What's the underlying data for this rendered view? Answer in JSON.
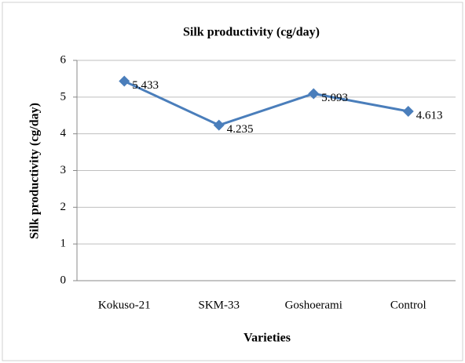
{
  "chart_data": {
    "type": "line",
    "title": "Silk productivity (cg/day)",
    "x_label": "Varieties",
    "y_label": "Silk productivity (cg/day)",
    "categories": [
      "Kokuso-21",
      "SKM-33",
      "Goshoerami",
      "Control"
    ],
    "values": [
      5.433,
      4.235,
      5.093,
      4.613
    ],
    "color": "#4a7ebb",
    "ylim": [
      0,
      6
    ],
    "yticks": [
      0,
      1,
      2,
      3,
      4,
      5,
      6
    ],
    "grid": true
  }
}
